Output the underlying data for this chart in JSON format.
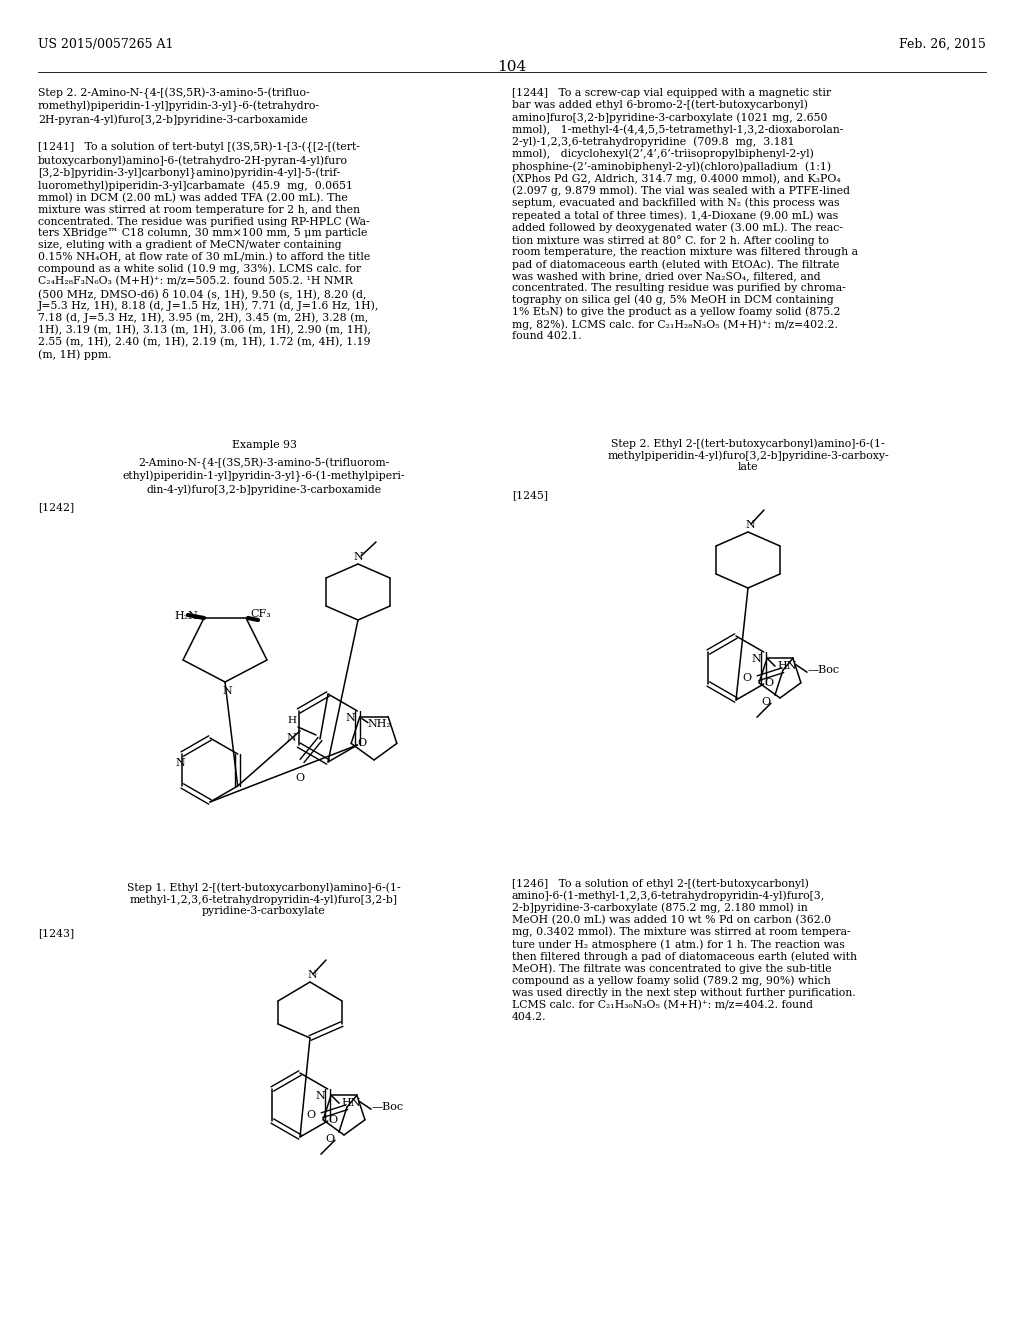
{
  "page_number": "104",
  "header_left": "US 2015/0057265 A1",
  "header_right": "Feb. 26, 2015",
  "bg": "#ffffff",
  "fg": "#000000",
  "fs": 7.8,
  "fs_hdr": 9.0
}
